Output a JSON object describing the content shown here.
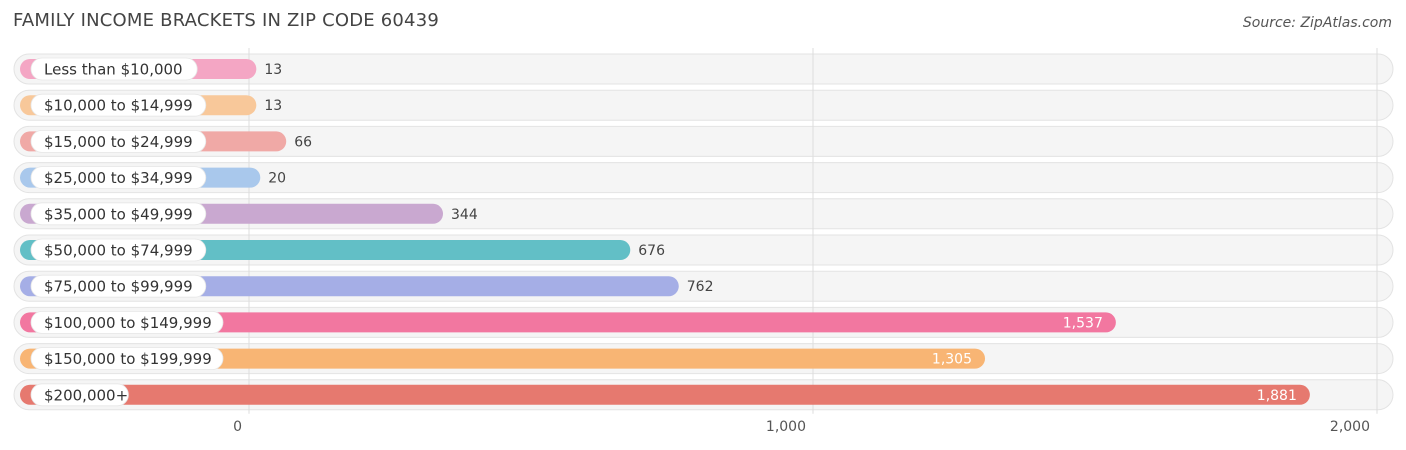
{
  "title": "FAMILY INCOME BRACKETS IN ZIP CODE 60439",
  "source": "Source: ZipAtlas.com",
  "chart_data": {
    "type": "bar",
    "orientation": "horizontal",
    "title": "FAMILY INCOME BRACKETS IN ZIP CODE 60439",
    "categories": [
      "Less than $10,000",
      "$10,000 to $14,999",
      "$15,000 to $24,999",
      "$25,000 to $34,999",
      "$35,000 to $49,999",
      "$50,000 to $74,999",
      "$75,000 to $99,999",
      "$100,000 to $149,999",
      "$150,000 to $199,999",
      "$200,000+"
    ],
    "values": [
      13,
      13,
      66,
      20,
      344,
      676,
      762,
      1537,
      1305,
      1881
    ],
    "value_labels": [
      "13",
      "13",
      "66",
      "20",
      "344",
      "676",
      "762",
      "1,537",
      "1,305",
      "1,881"
    ],
    "colors": [
      "#f4a6c4",
      "#f8c89a",
      "#f0a9a6",
      "#a9c8ec",
      "#c9a8d0",
      "#62bfc6",
      "#a5aee6",
      "#f277a0",
      "#f8b574",
      "#e6796f"
    ],
    "xlim": [
      0,
      2000
    ],
    "xticks": [
      0,
      1000,
      2000
    ],
    "xtick_labels": [
      "0",
      "1,000",
      "2,000"
    ],
    "grid": true
  }
}
